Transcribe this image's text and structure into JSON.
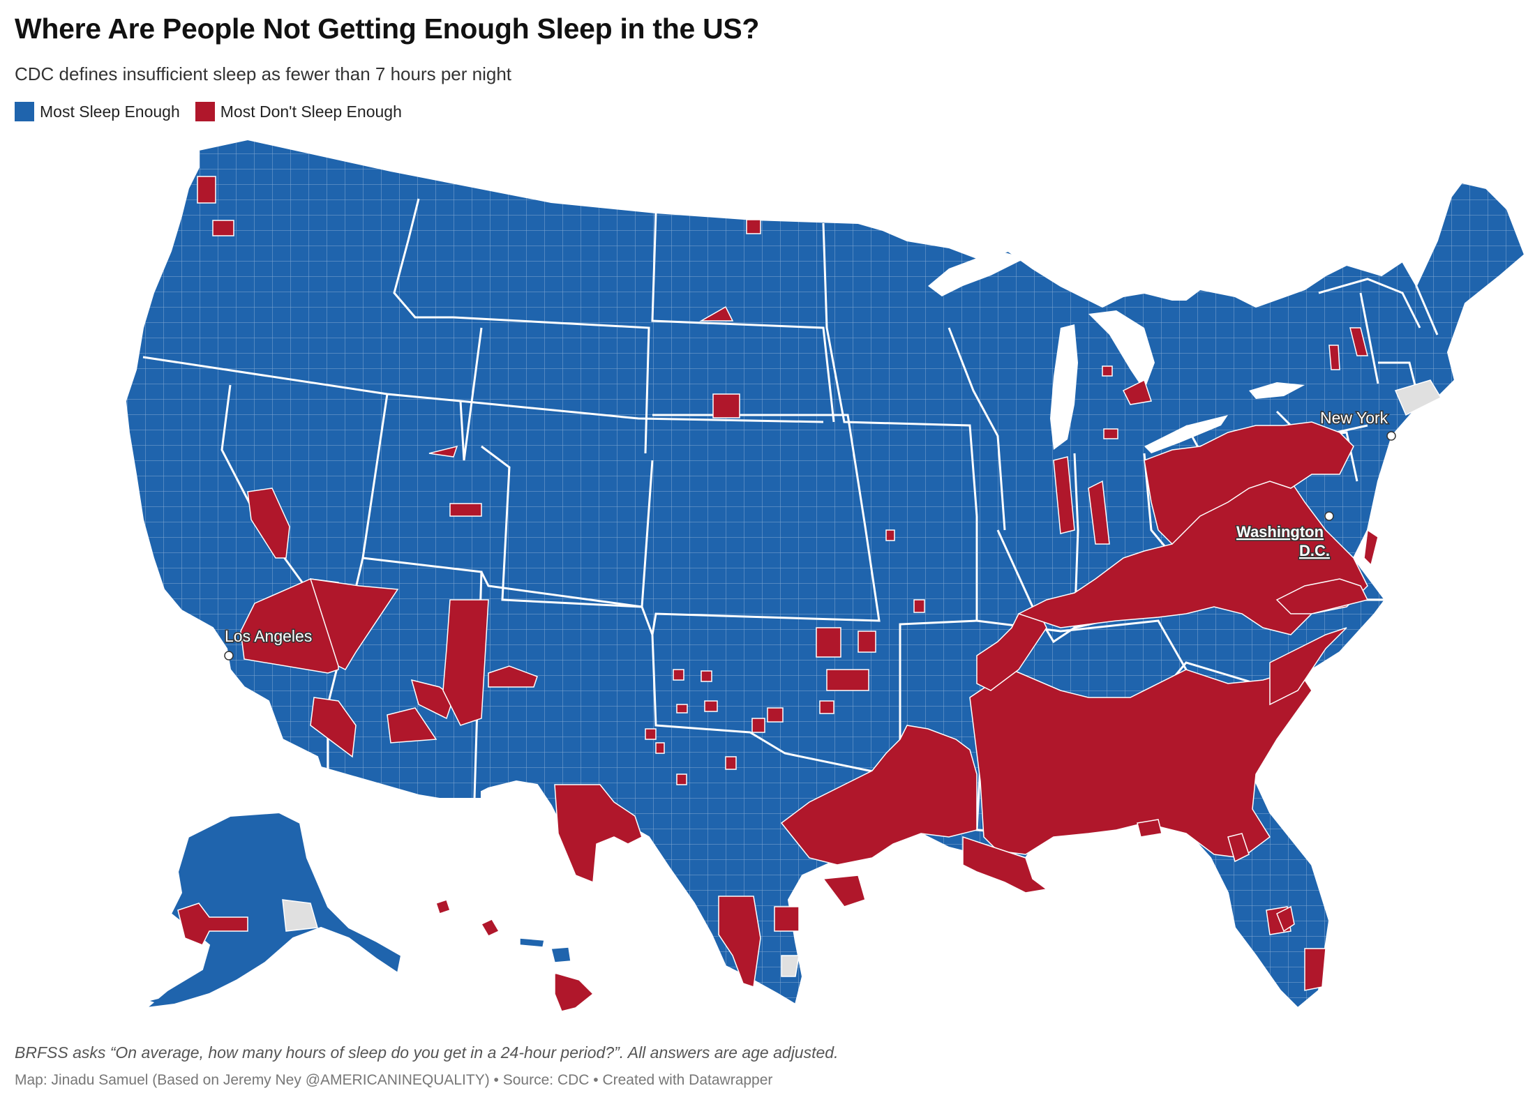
{
  "title": "Where Are People Not Getting Enough Sleep in the US?",
  "subtitle": "CDC defines insufficient sleep as fewer than 7 hours per night",
  "legend": [
    {
      "label": "Most Sleep Enough",
      "color": "#1f64ad"
    },
    {
      "label": "Most Don't Sleep Enough",
      "color": "#b0172b"
    }
  ],
  "colors": {
    "sleep_enough": "#1f64ad",
    "not_enough": "#b0172b",
    "no_data": "#e0e0e0",
    "border": "#ffffff"
  },
  "map": {
    "cities": {
      "new_york": "New York",
      "washington_line1": "Washington",
      "washington_line2": "D.C.",
      "los_angeles": "Los Angeles"
    }
  },
  "footer": {
    "notes": "BRFSS asks “On average, how many hours of sleep do you get in a 24-hour period?”. All answers are age adjusted.",
    "credit": "Map: Jinadu Samuel (Based on Jeremy Ney @AMERICANINEQUALITY) • Source: CDC • Created with Datawrapper"
  }
}
